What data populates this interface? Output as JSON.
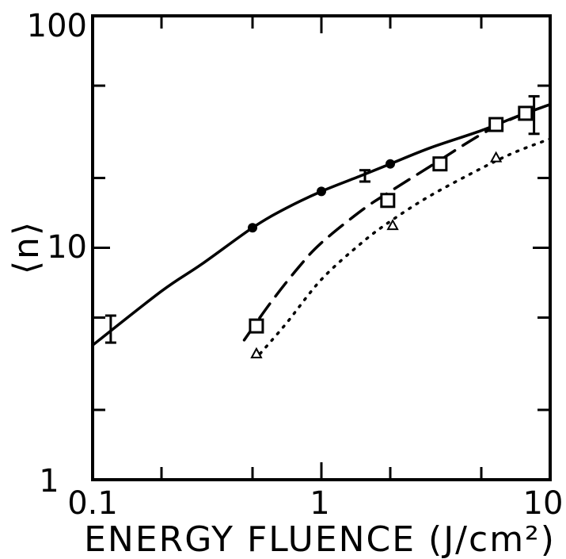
{
  "chart_data": {
    "type": "scatter",
    "title": "",
    "xlabel": "ENERGY FLUENCE (J/cm²)",
    "ylabel": "⟨n⟩",
    "xscale": "log",
    "yscale": "log",
    "xlim": [
      0.1,
      10
    ],
    "ylim": [
      1,
      100
    ],
    "x_tick_labels": [
      "0.1",
      "1",
      "10"
    ],
    "y_tick_labels": [
      "1",
      "10",
      "100"
    ],
    "grid": false,
    "series": [
      {
        "marker": "filled-circle",
        "line": "solid",
        "points": [
          {
            "x": 0.5,
            "y": 12.2
          },
          {
            "x": 1.0,
            "y": 17.5
          },
          {
            "x": 2.0,
            "y": 23.0
          }
        ],
        "curve": [
          {
            "x": 0.1,
            "y": 3.8
          },
          {
            "x": 0.2,
            "y": 6.5
          },
          {
            "x": 0.3,
            "y": 8.5
          },
          {
            "x": 0.5,
            "y": 12.2
          },
          {
            "x": 0.7,
            "y": 14.8
          },
          {
            "x": 1.0,
            "y": 17.5
          },
          {
            "x": 1.5,
            "y": 20.5
          },
          {
            "x": 2.0,
            "y": 23.0
          },
          {
            "x": 3.0,
            "y": 27.0
          },
          {
            "x": 5.0,
            "y": 32.0
          },
          {
            "x": 7.0,
            "y": 36.5
          },
          {
            "x": 10.0,
            "y": 41.5
          }
        ]
      },
      {
        "marker": "open-square",
        "line": "dashed",
        "points": [
          {
            "x": 0.52,
            "y": 4.6
          },
          {
            "x": 1.95,
            "y": 16.0
          },
          {
            "x": 3.3,
            "y": 23.0
          },
          {
            "x": 5.8,
            "y": 34.0
          },
          {
            "x": 7.8,
            "y": 38.0
          }
        ],
        "curve": [
          {
            "x": 0.46,
            "y": 4.0
          },
          {
            "x": 0.6,
            "y": 5.8
          },
          {
            "x": 0.8,
            "y": 8.3
          },
          {
            "x": 1.0,
            "y": 10.5
          },
          {
            "x": 1.5,
            "y": 14.5
          },
          {
            "x": 2.0,
            "y": 17.5
          },
          {
            "x": 3.0,
            "y": 22.5
          },
          {
            "x": 4.5,
            "y": 29.0
          },
          {
            "x": 6.0,
            "y": 34.0
          },
          {
            "x": 8.0,
            "y": 38.5
          }
        ]
      },
      {
        "marker": "open-triangle",
        "line": "dotted",
        "points": [
          {
            "x": 0.52,
            "y": 3.5
          },
          {
            "x": 2.05,
            "y": 12.5
          },
          {
            "x": 5.8,
            "y": 24.5
          }
        ],
        "curve": [
          {
            "x": 0.54,
            "y": 3.5
          },
          {
            "x": 0.7,
            "y": 4.7
          },
          {
            "x": 1.0,
            "y": 7.3
          },
          {
            "x": 1.5,
            "y": 10.5
          },
          {
            "x": 2.0,
            "y": 13.0
          },
          {
            "x": 3.0,
            "y": 16.8
          },
          {
            "x": 5.0,
            "y": 22.0
          },
          {
            "x": 7.0,
            "y": 25.8
          },
          {
            "x": 10.0,
            "y": 29.5
          }
        ]
      }
    ],
    "error_bars": [
      {
        "x": 0.12,
        "low": 3.9,
        "high": 5.1
      },
      {
        "x": 1.55,
        "low": 19.3,
        "high": 21.6
      },
      {
        "x": 8.5,
        "low": 31.0,
        "high": 45.0
      }
    ]
  }
}
